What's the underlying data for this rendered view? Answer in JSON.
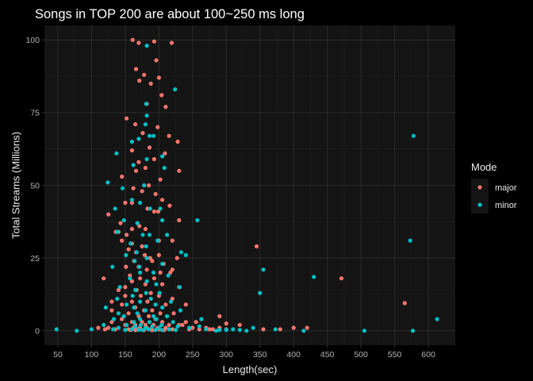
{
  "chart_data": {
    "type": "scatter",
    "title": "Songs in TOP 200 are about 100~250 ms long",
    "xlabel": "Length(sec)",
    "ylabel": "Total Streams (Millions)",
    "xlim": [
      30,
      640
    ],
    "ylim": [
      -5,
      105
    ],
    "x_ticks": [
      50,
      100,
      150,
      200,
      250,
      300,
      350,
      400,
      450,
      500,
      550,
      600
    ],
    "y_ticks": [
      0,
      25,
      50,
      75,
      100
    ],
    "grid": true,
    "legend": {
      "title": "Mode",
      "position": "right",
      "entries": [
        {
          "name": "major",
          "color": "#f8766d"
        },
        {
          "name": "minor",
          "color": "#00bfc4"
        }
      ]
    },
    "series": [
      {
        "name": "major",
        "color": "#f8766d",
        "points": [
          [
            161,
            100
          ],
          [
            170,
            99
          ],
          [
            193,
            99.5
          ],
          [
            219,
            99
          ],
          [
            196,
            93
          ],
          [
            166,
            90
          ],
          [
            178,
            88
          ],
          [
            200,
            87
          ],
          [
            171,
            86
          ],
          [
            188,
            85
          ],
          [
            204,
            81
          ],
          [
            182,
            78
          ],
          [
            210,
            77
          ],
          [
            152,
            73
          ],
          [
            165,
            71
          ],
          [
            198,
            70
          ],
          [
            176,
            68
          ],
          [
            215,
            67
          ],
          [
            228,
            65
          ],
          [
            186,
            63
          ],
          [
            160,
            62
          ],
          [
            209,
            61
          ],
          [
            193,
            59
          ],
          [
            170,
            58
          ],
          [
            180,
            56
          ],
          [
            166,
            55
          ],
          [
            230,
            55
          ],
          [
            145,
            53
          ],
          [
            202,
            52
          ],
          [
            185,
            50
          ],
          [
            162,
            49
          ],
          [
            175,
            48
          ],
          [
            195,
            47
          ],
          [
            205,
            45
          ],
          [
            160,
            44
          ],
          [
            150,
            44
          ],
          [
            216,
            43
          ],
          [
            125,
            40
          ],
          [
            183,
            42
          ],
          [
            193,
            41
          ],
          [
            199,
            41
          ],
          [
            143,
            37
          ],
          [
            230,
            38
          ],
          [
            171,
            36
          ],
          [
            160,
            35
          ],
          [
            180,
            35
          ],
          [
            136,
            34
          ],
          [
            140,
            34
          ],
          [
            152,
            33
          ],
          [
            145,
            31
          ],
          [
            160,
            30
          ],
          [
            175,
            29
          ],
          [
            200,
            31
          ],
          [
            220,
            31
          ],
          [
            155,
            28
          ],
          [
            166,
            27
          ],
          [
            179,
            26
          ],
          [
            187,
            25
          ],
          [
            227,
            25
          ],
          [
            163,
            24
          ],
          [
            190,
            24
          ],
          [
            207,
            23
          ],
          [
            151,
            22
          ],
          [
            170,
            22
          ],
          [
            182,
            21
          ],
          [
            202,
            20
          ],
          [
            217,
            20
          ],
          [
            118,
            18
          ],
          [
            157,
            19
          ],
          [
            172,
            18
          ],
          [
            193,
            18
          ],
          [
            160,
            17
          ],
          [
            180,
            16
          ],
          [
            205,
            16
          ],
          [
            230,
            15
          ],
          [
            140,
            14
          ],
          [
            167,
            14
          ],
          [
            188,
            13
          ],
          [
            150,
            12
          ],
          [
            173,
            12
          ],
          [
            200,
            12
          ],
          [
            220,
            11
          ],
          [
            130,
            10
          ],
          [
            160,
            10
          ],
          [
            183,
            10
          ],
          [
            195,
            9
          ],
          [
            145,
            9
          ],
          [
            210,
            9
          ],
          [
            240,
            9
          ],
          [
            165,
            8
          ],
          [
            178,
            7
          ],
          [
            190,
            7
          ],
          [
            130,
            7
          ],
          [
            155,
            6
          ],
          [
            202,
            6
          ],
          [
            222,
            6
          ],
          [
            170,
            5
          ],
          [
            185,
            5
          ],
          [
            145,
            4
          ],
          [
            195,
            4
          ],
          [
            160,
            3
          ],
          [
            175,
            3
          ],
          [
            205,
            3
          ],
          [
            130,
            3
          ],
          [
            240,
            3
          ],
          [
            165,
            2
          ],
          [
            180,
            2
          ],
          [
            192,
            2
          ],
          [
            150,
            2
          ],
          [
            215,
            2
          ],
          [
            230,
            2
          ],
          [
            162,
            1
          ],
          [
            172,
            1
          ],
          [
            182,
            1
          ],
          [
            198,
            1
          ],
          [
            140,
            1
          ],
          [
            210,
            1
          ],
          [
            125,
            1
          ],
          [
            250,
            1
          ],
          [
            155,
            0.5
          ],
          [
            168,
            0.5
          ],
          [
            188,
            0.5
          ],
          [
            200,
            0.5
          ],
          [
            135,
            0.5
          ],
          [
            220,
            0.5
          ],
          [
            245,
            0.5
          ],
          [
            178,
            0.3
          ],
          [
            208,
            0.3
          ],
          [
            158,
            0.3
          ],
          [
            190,
            0.2
          ],
          [
            165,
            0.2
          ],
          [
            260,
            0.5
          ],
          [
            275,
            0.5
          ],
          [
            290,
            1
          ],
          [
            300,
            0.5
          ],
          [
            320,
            2
          ],
          [
            345,
            29
          ],
          [
            355,
            0.5
          ],
          [
            380,
            0.5
          ],
          [
            400,
            1
          ],
          [
            420,
            1
          ],
          [
            471,
            18
          ],
          [
            565,
            9.5
          ],
          [
            300,
            2.5
          ],
          [
            290,
            5
          ],
          [
            280,
            0.5
          ],
          [
            270,
            1
          ],
          [
            255,
            3
          ],
          [
            245,
            1
          ],
          [
            235,
            2
          ],
          [
            150,
            15
          ],
          [
            200,
            26
          ],
          [
            220,
            21
          ],
          [
            110,
            1
          ],
          [
            120,
            0.5
          ]
        ]
      },
      {
        "name": "minor",
        "color": "#00bfc4",
        "points": [
          [
            182,
            98
          ],
          [
            224,
            83
          ],
          [
            181,
            78
          ],
          [
            182,
            74
          ],
          [
            180,
            71
          ],
          [
            186,
            67
          ],
          [
            192,
            67
          ],
          [
            170,
            66
          ],
          [
            160,
            65
          ],
          [
            137,
            61
          ],
          [
            205,
            60
          ],
          [
            182,
            59
          ],
          [
            162,
            57
          ],
          [
            208,
            56
          ],
          [
            124,
            51
          ],
          [
            178,
            50
          ],
          [
            146,
            49
          ],
          [
            160,
            45
          ],
          [
            172,
            44
          ],
          [
            202,
            42
          ],
          [
            135,
            42
          ],
          [
            187,
            42
          ],
          [
            148,
            38
          ],
          [
            205,
            38
          ],
          [
            168,
            37
          ],
          [
            257,
            38
          ],
          [
            138,
            34
          ],
          [
            186,
            33
          ],
          [
            176,
            33
          ],
          [
            212,
            33
          ],
          [
            158,
            30
          ],
          [
            198,
            31
          ],
          [
            181,
            29
          ],
          [
            167,
            27
          ],
          [
            233,
            27
          ],
          [
            151,
            26
          ],
          [
            240,
            26
          ],
          [
            182,
            25
          ],
          [
            164,
            24
          ],
          [
            205,
            23
          ],
          [
            131,
            22
          ],
          [
            171,
            22
          ],
          [
            192,
            20
          ],
          [
            355,
            21
          ],
          [
            172,
            20
          ],
          [
            214,
            19
          ],
          [
            157,
            18
          ],
          [
            430,
            18.5
          ],
          [
            182,
            17
          ],
          [
            196,
            16
          ],
          [
            231,
            15
          ],
          [
            142,
            15
          ],
          [
            165,
            14
          ],
          [
            201,
            13
          ],
          [
            181,
            13
          ],
          [
            161,
            12
          ],
          [
            138,
            11
          ],
          [
            188,
            11
          ],
          [
            218,
            10
          ],
          [
            172,
            10
          ],
          [
            152,
            9
          ],
          [
            195,
            9
          ],
          [
            121,
            8
          ],
          [
            163,
            8
          ],
          [
            205,
            8
          ],
          [
            180,
            7
          ],
          [
            232,
            7
          ],
          [
            168,
            6
          ],
          [
            140,
            6
          ],
          [
            192,
            5
          ],
          [
            350,
            13
          ],
          [
            148,
            5
          ],
          [
            212,
            5
          ],
          [
            172,
            4
          ],
          [
            263,
            4
          ],
          [
            196,
            4
          ],
          [
            133,
            4
          ],
          [
            186,
            3
          ],
          [
            163,
            3
          ],
          [
            221,
            3
          ],
          [
            173,
            2
          ],
          [
            152,
            2
          ],
          [
            204,
            2
          ],
          [
            118,
            2
          ],
          [
            190,
            1.5
          ],
          [
            165,
            1.5
          ],
          [
            228,
            1.5
          ],
          [
            140,
            1
          ],
          [
            180,
            1
          ],
          [
            200,
            1
          ],
          [
            245,
            1
          ],
          [
            160,
            0.5
          ],
          [
            185,
            0.5
          ],
          [
            215,
            0.5
          ],
          [
            132,
            0.5
          ],
          [
            170,
            0.3
          ],
          [
            195,
            0.3
          ],
          [
            225,
            0.3
          ],
          [
            150,
            0.3
          ],
          [
            205,
            0.2
          ],
          [
            176,
            0.2
          ],
          [
            48,
            0.5
          ],
          [
            78,
            0
          ],
          [
            100,
            0.5
          ],
          [
            270,
            0.5
          ],
          [
            285,
            0
          ],
          [
            310,
            0.5
          ],
          [
            330,
            0
          ],
          [
            373,
            0.5
          ],
          [
            415,
            0
          ],
          [
            505,
            0
          ],
          [
            578,
            67
          ],
          [
            573,
            31
          ],
          [
            577,
            0
          ],
          [
            613,
            4
          ],
          [
            300,
            0.3
          ],
          [
            320,
            0.3
          ],
          [
            340,
            1
          ],
          [
            260,
            1.5
          ],
          [
            290,
            0.3
          ]
        ]
      }
    ]
  }
}
